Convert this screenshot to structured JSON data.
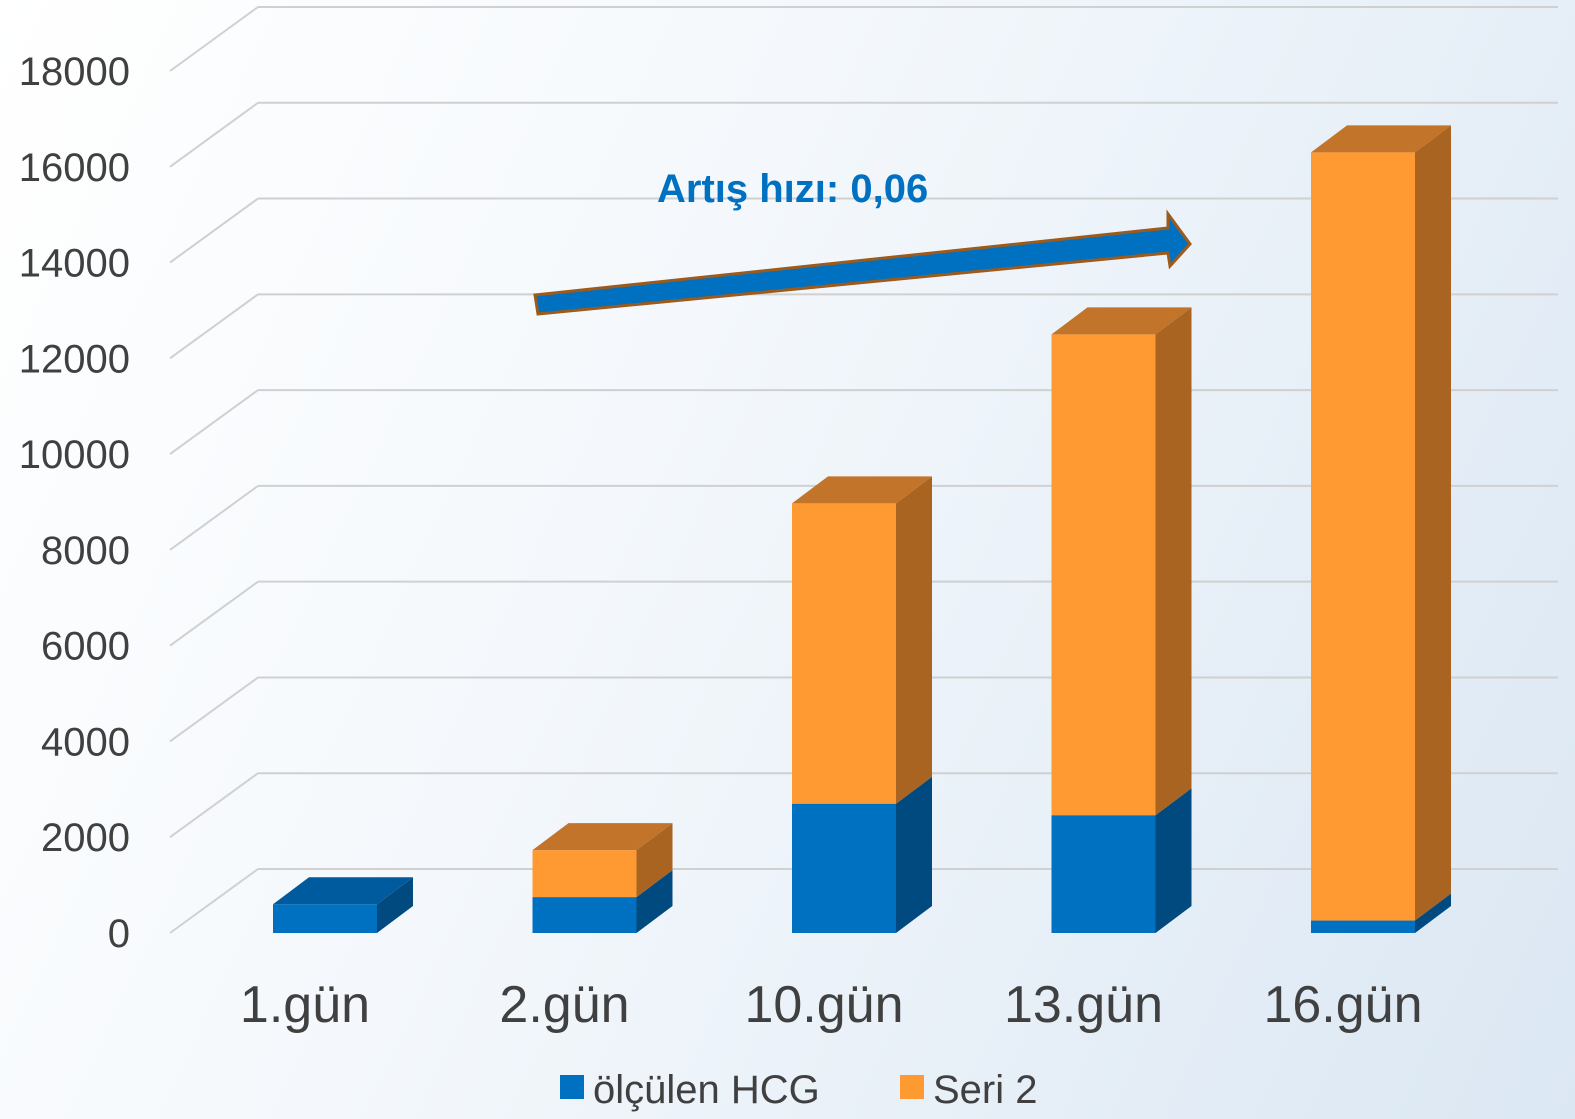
{
  "chart_data": {
    "type": "bar",
    "stacked": true,
    "three_d": true,
    "categories": [
      "1.gün",
      "2.gün",
      "10.gün",
      "13.gün",
      "16.gün"
    ],
    "series": [
      {
        "name": "ölçülen HCG",
        "values": [
          600,
          750,
          2700,
          2460,
          260
        ],
        "color": "#0070c0",
        "side_color": "#004a80",
        "top_color": "#005a9e"
      },
      {
        "name": "Seri 2",
        "values": [
          0,
          980,
          6270,
          10040,
          16040
        ],
        "color": "#ff9a33",
        "side_color": "#a86420",
        "top_color": "#c2742a"
      }
    ],
    "y_ticks": [
      "0",
      "2000",
      "4000",
      "6000",
      "8000",
      "10000",
      "12000",
      "14000",
      "16000",
      "18000"
    ],
    "ylim": [
      0,
      18000
    ],
    "grid": true,
    "legend_position": "bottom",
    "annotation": {
      "text": "Artış hızı: 0,06",
      "color": "#0070c0",
      "arrow_color": "#0070c0",
      "arrow_outline": "#9c5b1c"
    }
  }
}
